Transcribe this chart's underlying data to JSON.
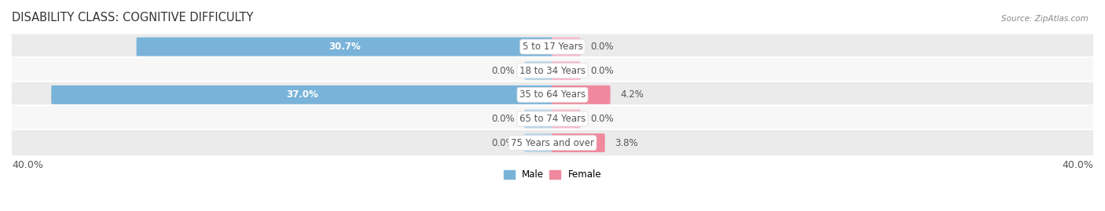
{
  "title": "DISABILITY CLASS: COGNITIVE DIFFICULTY",
  "source": "Source: ZipAtlas.com",
  "categories": [
    "5 to 17 Years",
    "18 to 34 Years",
    "35 to 64 Years",
    "65 to 74 Years",
    "75 Years and over"
  ],
  "male_values": [
    30.7,
    0.0,
    37.0,
    0.0,
    0.0
  ],
  "female_values": [
    0.0,
    0.0,
    4.2,
    0.0,
    3.8
  ],
  "max_val": 40.0,
  "male_color": "#7ab3d9",
  "female_color": "#f0899e",
  "male_zero_color": "#b8d5ea",
  "female_zero_color": "#f7bbc9",
  "row_bg_colors": [
    "#ebebeb",
    "#f7f7f7"
  ],
  "label_color": "#555555",
  "title_color": "#333333",
  "title_fontsize": 10.5,
  "label_fontsize": 8.5,
  "tick_fontsize": 9,
  "zero_stub": 2.0,
  "x_left_label": "40.0%",
  "x_right_label": "40.0%"
}
